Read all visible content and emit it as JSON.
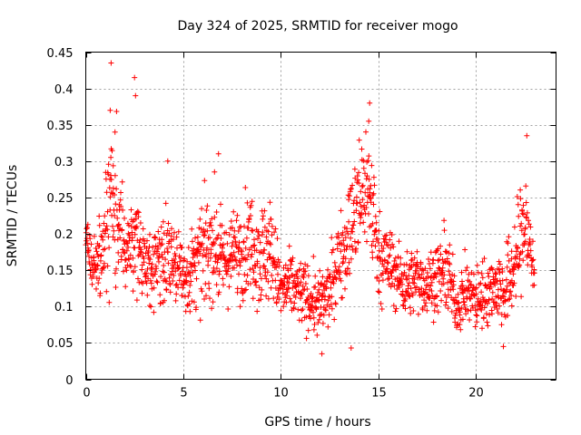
{
  "chart_data": {
    "type": "scatter",
    "title": "Day 324 of 2025, SRMTID for receiver mogo",
    "xlabel": "GPS time / hours",
    "ylabel": "SRMTID / TECUs",
    "xlim": [
      0,
      24.1
    ],
    "ylim": [
      0,
      0.45
    ],
    "x_ticks": [
      0,
      5,
      10,
      15,
      20
    ],
    "y_ticks": [
      0,
      0.05,
      0.1,
      0.15,
      0.2,
      0.25,
      0.3,
      0.35,
      0.4,
      0.45
    ],
    "x_tick_labels": [
      "0",
      "5",
      "10",
      "15",
      "20"
    ],
    "y_tick_labels": [
      "0",
      "0.05",
      "0.1",
      "0.15",
      "0.2",
      "0.25",
      "0.3",
      "0.35",
      "0.4",
      "0.45"
    ],
    "grid": true,
    "marker": "+",
    "color": "#ff0000",
    "series": [
      {
        "name": "SRMTID",
        "envelope_hours": [
          0,
          0.3,
          0.6,
          1.0,
          1.3,
          1.6,
          2.0,
          2.5,
          3.0,
          3.5,
          4.0,
          4.5,
          5.0,
          5.5,
          6.0,
          6.5,
          7.0,
          7.5,
          8.0,
          8.5,
          9.0,
          9.5,
          10.0,
          10.5,
          11.0,
          11.5,
          12.0,
          12.5,
          13.0,
          13.5,
          14.0,
          14.3,
          14.6,
          15.0,
          15.5,
          16.0,
          16.5,
          17.0,
          17.5,
          18.0,
          18.5,
          19.0,
          19.5,
          20.0,
          20.5,
          21.0,
          21.5,
          22.0,
          22.5,
          23.0
        ],
        "median_srmtid": [
          0.2,
          0.15,
          0.16,
          0.18,
          0.25,
          0.22,
          0.17,
          0.2,
          0.16,
          0.15,
          0.18,
          0.17,
          0.14,
          0.15,
          0.17,
          0.19,
          0.16,
          0.17,
          0.18,
          0.19,
          0.17,
          0.18,
          0.12,
          0.13,
          0.12,
          0.11,
          0.1,
          0.12,
          0.17,
          0.2,
          0.24,
          0.27,
          0.25,
          0.17,
          0.16,
          0.14,
          0.13,
          0.14,
          0.13,
          0.14,
          0.15,
          0.1,
          0.12,
          0.11,
          0.12,
          0.13,
          0.12,
          0.16,
          0.22,
          0.14
        ],
        "spread": [
          0.03,
          0.03,
          0.04,
          0.08,
          0.09,
          0.09,
          0.05,
          0.06,
          0.05,
          0.05,
          0.06,
          0.05,
          0.05,
          0.05,
          0.06,
          0.07,
          0.05,
          0.05,
          0.06,
          0.06,
          0.07,
          0.06,
          0.04,
          0.04,
          0.04,
          0.04,
          0.04,
          0.04,
          0.05,
          0.06,
          0.08,
          0.08,
          0.08,
          0.05,
          0.05,
          0.04,
          0.04,
          0.04,
          0.04,
          0.04,
          0.05,
          0.03,
          0.04,
          0.04,
          0.04,
          0.04,
          0.05,
          0.06,
          0.07,
          0.04
        ],
        "peak_points": [
          {
            "x": 1.3,
            "y": 0.435
          },
          {
            "x": 1.25,
            "y": 0.37
          },
          {
            "x": 1.5,
            "y": 0.34
          },
          {
            "x": 2.5,
            "y": 0.415
          },
          {
            "x": 2.55,
            "y": 0.39
          },
          {
            "x": 4.2,
            "y": 0.3
          },
          {
            "x": 6.8,
            "y": 0.31
          },
          {
            "x": 14.55,
            "y": 0.38
          },
          {
            "x": 14.5,
            "y": 0.355
          },
          {
            "x": 22.6,
            "y": 0.335
          },
          {
            "x": 21.4,
            "y": 0.045
          },
          {
            "x": 12.1,
            "y": 0.035
          },
          {
            "x": 13.6,
            "y": 0.043
          }
        ]
      }
    ]
  }
}
